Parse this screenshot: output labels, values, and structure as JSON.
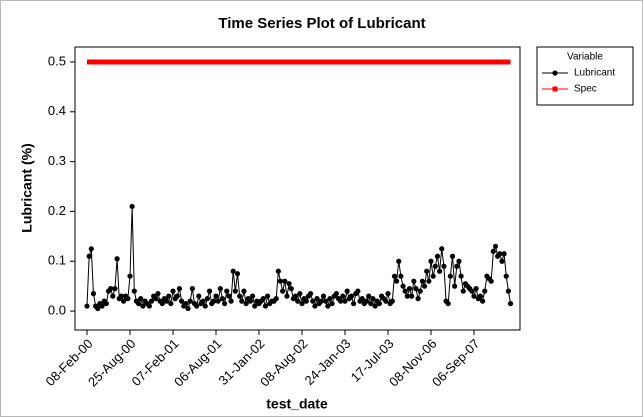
{
  "chart_data": {
    "type": "line",
    "title": "Time Series Plot of Lubricant",
    "x_label": "test_date",
    "y_label": "Lubricant (%)",
    "legend_title": "Variable",
    "legend": "right",
    "categories": [
      "08-Feb-00",
      null,
      null,
      null,
      null,
      null,
      null,
      null,
      null,
      null,
      null,
      null,
      null,
      null,
      null,
      null,
      null,
      null,
      null,
      null,
      "25-Aug-00",
      null,
      null,
      null,
      null,
      null,
      null,
      null,
      null,
      null,
      null,
      null,
      null,
      null,
      null,
      null,
      null,
      null,
      null,
      null,
      "07-Feb-01",
      null,
      null,
      null,
      null,
      null,
      null,
      null,
      null,
      null,
      null,
      null,
      null,
      null,
      null,
      null,
      null,
      null,
      null,
      null,
      "06-Aug-01",
      null,
      null,
      null,
      null,
      null,
      null,
      null,
      null,
      null,
      null,
      null,
      null,
      null,
      null,
      null,
      null,
      null,
      null,
      null,
      "31-Jan-02",
      null,
      null,
      null,
      null,
      null,
      null,
      null,
      null,
      null,
      null,
      null,
      null,
      null,
      null,
      null,
      null,
      null,
      null,
      null,
      "08-Aug-02",
      null,
      null,
      null,
      null,
      null,
      null,
      null,
      null,
      null,
      null,
      null,
      null,
      null,
      null,
      null,
      null,
      null,
      null,
      null,
      "24-Jan-03",
      null,
      null,
      null,
      null,
      null,
      null,
      null,
      null,
      null,
      null,
      null,
      null,
      null,
      null,
      null,
      null,
      null,
      null,
      null,
      "17-Jul-03",
      null,
      null,
      null,
      null,
      null,
      null,
      null,
      null,
      null,
      null,
      null,
      null,
      null,
      null,
      null,
      null,
      null,
      null,
      null,
      "08-Nov-06",
      null,
      null,
      null,
      null,
      null,
      null,
      null,
      null,
      null,
      null,
      null,
      null,
      null,
      null,
      null,
      null,
      null,
      null,
      null,
      "06-Sep-07",
      null,
      null,
      null,
      null,
      null,
      null,
      null,
      null,
      null,
      null,
      null,
      null,
      null,
      null,
      null,
      null,
      null
    ],
    "series": [
      {
        "name": "Lubricant",
        "color": "#000000",
        "marker": "circle",
        "line_width": 1,
        "values": [
          0.01,
          0.11,
          0.125,
          0.035,
          0.01,
          0.005,
          0.015,
          0.01,
          0.02,
          0.015,
          0.04,
          0.045,
          0.03,
          0.045,
          0.105,
          0.025,
          0.03,
          0.02,
          0.03,
          0.025,
          0.07,
          0.21,
          0.04,
          0.02,
          0.015,
          0.025,
          0.01,
          0.02,
          0.015,
          0.01,
          0.02,
          0.03,
          0.025,
          0.035,
          0.02,
          0.015,
          0.025,
          0.02,
          0.03,
          0.015,
          0.04,
          0.025,
          0.03,
          0.045,
          0.02,
          0.01,
          0.015,
          0.005,
          0.02,
          0.045,
          0.015,
          0.01,
          0.03,
          0.015,
          0.02,
          0.01,
          0.025,
          0.04,
          0.015,
          0.02,
          0.03,
          0.02,
          0.045,
          0.025,
          0.015,
          0.04,
          0.03,
          0.02,
          0.08,
          0.04,
          0.075,
          0.03,
          0.02,
          0.04,
          0.015,
          0.025,
          0.02,
          0.03,
          0.01,
          0.02,
          0.015,
          0.02,
          0.025,
          0.01,
          0.03,
          0.015,
          0.02,
          0.02,
          0.025,
          0.08,
          0.06,
          0.04,
          0.06,
          0.03,
          0.055,
          0.045,
          0.025,
          0.03,
          0.02,
          0.035,
          0.015,
          0.025,
          0.02,
          0.03,
          0.035,
          0.02,
          0.01,
          0.025,
          0.015,
          0.02,
          0.03,
          0.02,
          0.01,
          0.025,
          0.015,
          0.03,
          0.035,
          0.025,
          0.02,
          0.03,
          0.02,
          0.04,
          0.025,
          0.03,
          0.015,
          0.035,
          0.04,
          0.02,
          0.025,
          0.015,
          0.02,
          0.03,
          0.015,
          0.025,
          0.01,
          0.02,
          0.015,
          0.03,
          0.025,
          0.02,
          0.035,
          0.015,
          0.02,
          0.07,
          0.06,
          0.1,
          0.07,
          0.05,
          0.04,
          0.03,
          0.045,
          0.03,
          0.06,
          0.045,
          0.025,
          0.04,
          0.06,
          0.05,
          0.08,
          0.06,
          0.1,
          0.07,
          0.09,
          0.11,
          0.08,
          0.125,
          0.09,
          0.02,
          0.015,
          0.07,
          0.11,
          0.05,
          0.09,
          0.1,
          0.07,
          0.04,
          0.055,
          0.05,
          0.045,
          0.04,
          0.03,
          0.045,
          0.025,
          0.03,
          0.02,
          0.04,
          0.07,
          0.065,
          0.06,
          0.12,
          0.13,
          0.11,
          0.115,
          0.1,
          0.115,
          0.07,
          0.04,
          0.015
        ]
      },
      {
        "name": "Spec",
        "color": "#ff0000",
        "marker": "square",
        "line_width": 5,
        "values": [
          0.5,
          0.5,
          0.5,
          0.5,
          0.5,
          0.5,
          0.5,
          0.5,
          0.5,
          0.5,
          0.5,
          0.5,
          0.5,
          0.5,
          0.5,
          0.5,
          0.5,
          0.5,
          0.5,
          0.5,
          0.5,
          0.5,
          0.5,
          0.5,
          0.5,
          0.5,
          0.5,
          0.5,
          0.5,
          0.5,
          0.5,
          0.5,
          0.5,
          0.5,
          0.5,
          0.5,
          0.5,
          0.5,
          0.5,
          0.5,
          0.5,
          0.5,
          0.5,
          0.5,
          0.5,
          0.5,
          0.5,
          0.5,
          0.5,
          0.5,
          0.5,
          0.5,
          0.5,
          0.5,
          0.5,
          0.5,
          0.5,
          0.5,
          0.5,
          0.5,
          0.5,
          0.5,
          0.5,
          0.5,
          0.5,
          0.5,
          0.5,
          0.5,
          0.5,
          0.5,
          0.5,
          0.5,
          0.5,
          0.5,
          0.5,
          0.5,
          0.5,
          0.5,
          0.5,
          0.5,
          0.5,
          0.5,
          0.5,
          0.5,
          0.5,
          0.5,
          0.5,
          0.5,
          0.5,
          0.5,
          0.5,
          0.5,
          0.5,
          0.5,
          0.5,
          0.5,
          0.5,
          0.5,
          0.5,
          0.5,
          0.5,
          0.5,
          0.5,
          0.5,
          0.5,
          0.5,
          0.5,
          0.5,
          0.5,
          0.5,
          0.5,
          0.5,
          0.5,
          0.5,
          0.5,
          0.5,
          0.5,
          0.5,
          0.5,
          0.5,
          0.5,
          0.5,
          0.5,
          0.5,
          0.5,
          0.5,
          0.5,
          0.5,
          0.5,
          0.5,
          0.5,
          0.5,
          0.5,
          0.5,
          0.5,
          0.5,
          0.5,
          0.5,
          0.5,
          0.5,
          0.5,
          0.5,
          0.5,
          0.5,
          0.5,
          0.5,
          0.5,
          0.5,
          0.5,
          0.5,
          0.5,
          0.5,
          0.5,
          0.5,
          0.5,
          0.5,
          0.5,
          0.5,
          0.5,
          0.5,
          0.5,
          0.5,
          0.5,
          0.5,
          0.5,
          0.5,
          0.5,
          0.5,
          0.5,
          0.5,
          0.5,
          0.5,
          0.5,
          0.5,
          0.5,
          0.5,
          0.5,
          0.5,
          0.5,
          0.5,
          0.5,
          0.5,
          0.5,
          0.5,
          0.5,
          0.5,
          0.5,
          0.5,
          0.5,
          0.5,
          0.5,
          0.5,
          0.5,
          0.5,
          0.5,
          0.5,
          0.5,
          0.5
        ]
      }
    ],
    "ylim": [
      -0.038,
      0.53
    ],
    "yticks": [
      {
        "value": 0,
        "label": "0.0"
      },
      0.1,
      0.2,
      0.3,
      0.4,
      0.5
    ]
  }
}
